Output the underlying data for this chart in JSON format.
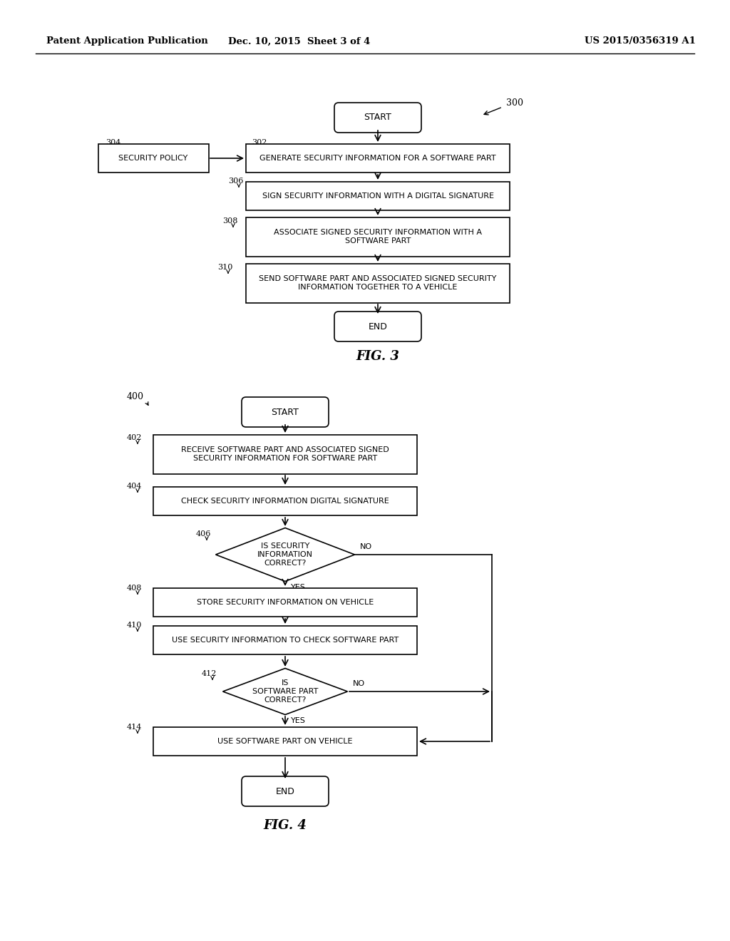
{
  "header_left": "Patent Application Publication",
  "header_center": "Dec. 10, 2015  Sheet 3 of 4",
  "header_right": "US 2015/0356319 A1",
  "bg_color": "#ffffff"
}
